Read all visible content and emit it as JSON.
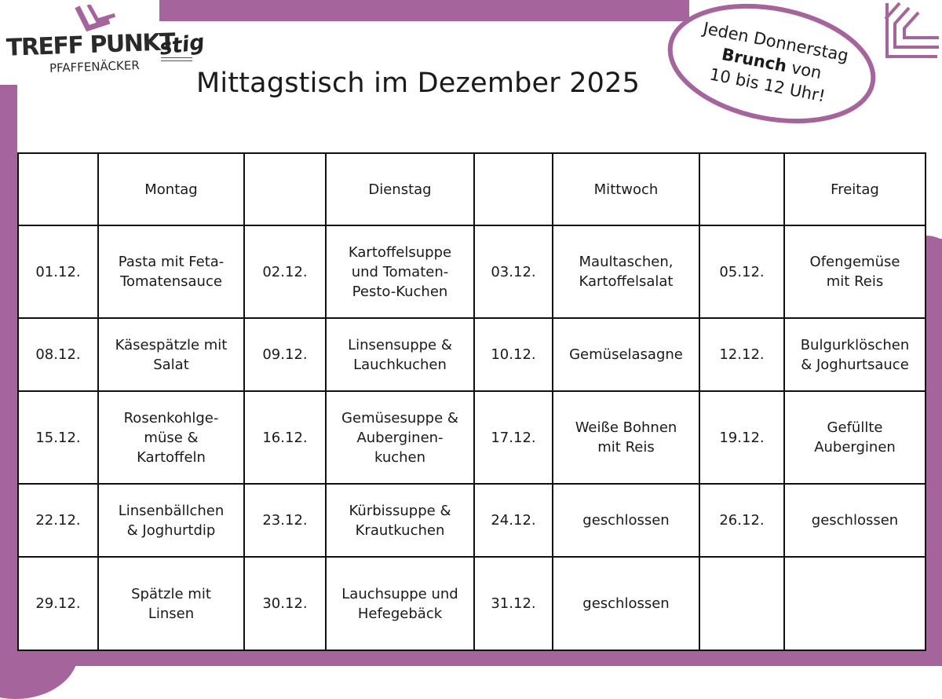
{
  "brand": {
    "name_line1": "TREFF PUNKT",
    "name_line2": "PFAFFENÄCKER",
    "partner_logo": "stig"
  },
  "title": "Mittagstisch im Dezember 2025",
  "callout": {
    "line1": "Jeden Donnerstag",
    "bold": "Brunch",
    "after_bold": " von",
    "line3": "10 bis 12 Uhr!"
  },
  "colors": {
    "accent": "#a5659c",
    "text": "#1a1a1a",
    "border": "#111111"
  },
  "table": {
    "headers": [
      "",
      "Montag",
      "",
      "Dienstag",
      "",
      "Mittwoch",
      "",
      "Freitag"
    ],
    "rows": [
      [
        "01.12.",
        "Pasta mit Feta-\nTomatensauce",
        "02.12.",
        "Kartoffelsuppe\nund Tomaten-\nPesto-Kuchen",
        "03.12.",
        "Maultaschen,\nKartoffelsalat",
        "05.12.",
        "Ofengemüse\nmit Reis"
      ],
      [
        "08.12.",
        "Käsespätzle mit\nSalat",
        "09.12.",
        "Linsensuppe &\nLauchkuchen",
        "10.12.",
        "Gemüselasagne",
        "12.12.",
        "Bulgurklöschen\n& Joghurtsauce"
      ],
      [
        "15.12.",
        "Rosenkohlge-\nmüse &\nKartoffeln",
        "16.12.",
        "Gemüsesuppe &\nAuberginen-\nkuchen",
        "17.12.",
        "Weiße Bohnen\nmit Reis",
        "19.12.",
        "Gefüllte\nAuberginen"
      ],
      [
        "22.12.",
        "Linsenbällchen\n& Joghurtdip",
        "23.12.",
        "Kürbissuppe &\nKrautkuchen",
        "24.12.",
        "geschlossen",
        "26.12.",
        "geschlossen"
      ],
      [
        "29.12.",
        "Spätzle mit\nLinsen",
        "30.12.",
        "Lauchsuppe und\nHefegebäck",
        "31.12.",
        "geschlossen",
        "",
        ""
      ]
    ]
  }
}
